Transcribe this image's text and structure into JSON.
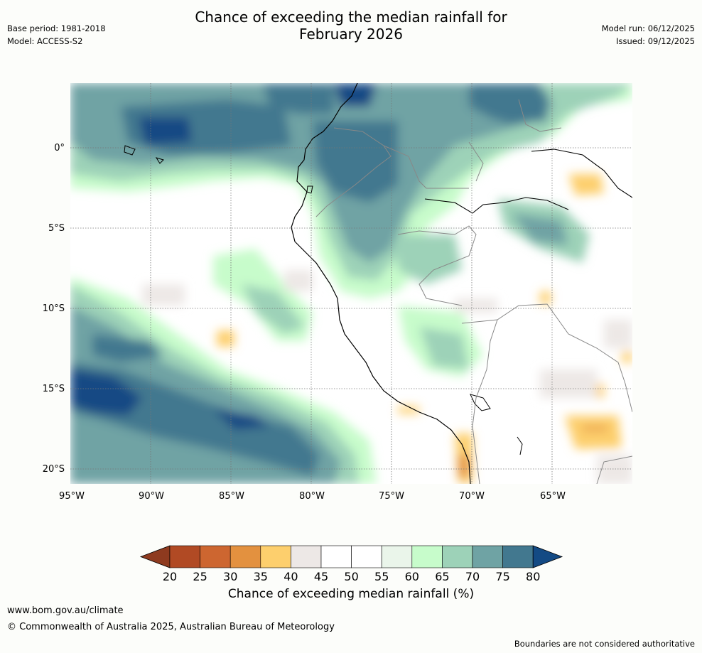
{
  "header": {
    "base_period": "Base period: 1981-2018",
    "model": "Model: ACCESS-S2",
    "title_line1": "Chance of exceeding the median rainfall for",
    "title_line2": "February 2026",
    "model_run": "Model run: 06/12/2025",
    "issued": "Issued: 09/12/2025"
  },
  "map": {
    "lat_labels": [
      "0°",
      "5°S",
      "10°S",
      "15°S",
      "20°S"
    ],
    "lon_labels": [
      "95°W",
      "90°W",
      "85°W",
      "80°W",
      "75°W",
      "70°W",
      "65°W"
    ]
  },
  "colorbar": {
    "ticks": [
      "20",
      "25",
      "30",
      "35",
      "40",
      "45",
      "50",
      "55",
      "60",
      "65",
      "70",
      "75",
      "80"
    ],
    "colors": [
      "#b14a24",
      "#cd6630",
      "#e3913f",
      "#fdcf6d",
      "#ede8e6",
      "#ffffff",
      "#ffffff",
      "#eaf5ea",
      "#c7fccb",
      "#9dd2b8",
      "#6fa3a4",
      "#42788f"
    ],
    "under_color": "#8e3a1f",
    "over_color": "#134a84",
    "title": "Chance of exceeding median rainfall (%)"
  },
  "footer": {
    "link": "www.bom.gov.au/climate",
    "copyright": "© Commonwealth of Australia 2025, Australian Bureau of Meteorology",
    "note": "Boundaries are not considered authoritative"
  }
}
